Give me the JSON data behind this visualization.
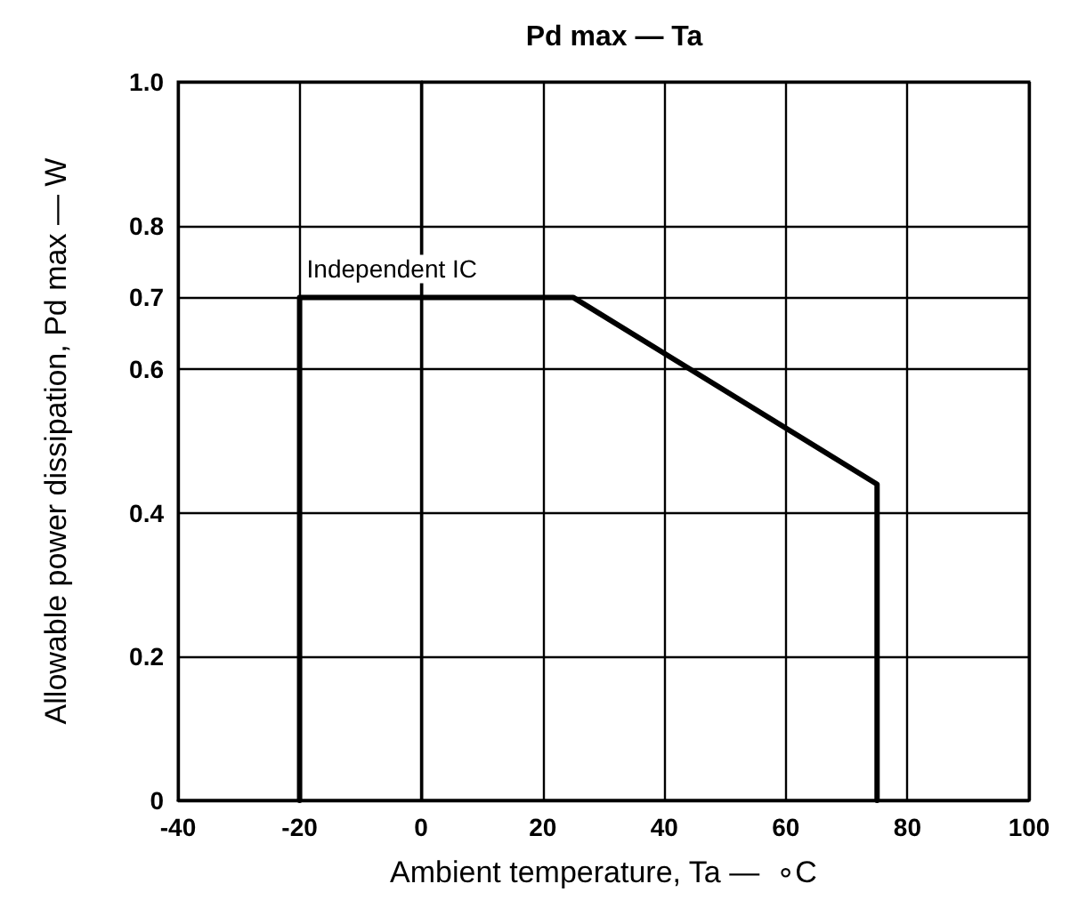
{
  "chart_data": {
    "type": "line",
    "title": "Pd max — Ta",
    "xlabel": "Ambient temperature, Ta —  ∘C",
    "ylabel": "Allowable power dissipation, Pd max — W",
    "x": [
      -20,
      -20,
      25,
      75,
      75
    ],
    "series": [
      {
        "color": "#000000",
        "values": [
          0,
          0.7,
          0.7,
          0.44,
          0
        ]
      }
    ],
    "xlim": [
      -40,
      100
    ],
    "xticks": [
      -40,
      -20,
      0,
      20,
      40,
      60,
      80,
      100
    ],
    "ylim": [
      0,
      1.0
    ],
    "yticks": [
      0,
      0.2,
      0.4,
      0.6,
      {
        "value": 0.7,
        "label": "0.7"
      },
      0.8,
      {
        "value": 1.0,
        "label": "1.0"
      }
    ],
    "grid": true,
    "marker": "none",
    "line_style": "solid",
    "annotations": [
      {
        "text": "Independent IC",
        "x": -20,
        "y": 0.7
      }
    ]
  }
}
